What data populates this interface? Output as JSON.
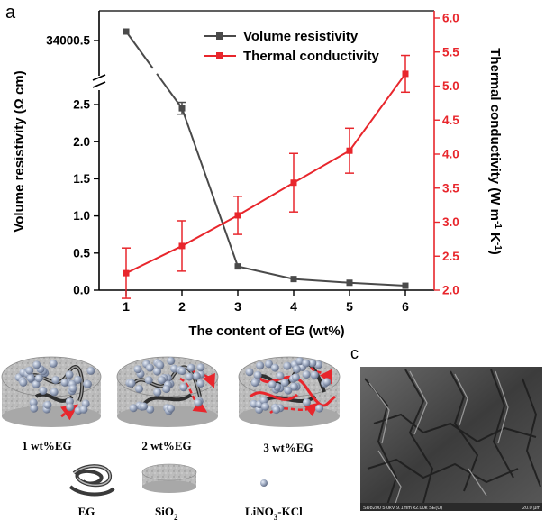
{
  "panel_a": {
    "label": "a"
  },
  "panel_c": {
    "label": "c",
    "sem_caption": "SU8200 5.0kV 9.1mm x2.00k SE(U)",
    "scale_bar": "20.0 μm"
  },
  "panel_b": {
    "samples": [
      "1 wt%EG",
      "2 wt%EG",
      "3 wt%EG"
    ],
    "legend": {
      "eg": "EG",
      "sio2": "SiO",
      "sio2_sub": "2",
      "salt": "LiNO",
      "salt_sub": "3",
      "salt_suffix": "-KCl"
    }
  },
  "colors": {
    "resistivity": "#4a4a4a",
    "conductivity": "#e8262c",
    "background": "#ffffff"
  },
  "chart_data": {
    "type": "line",
    "xlabel": "The content of EG (wt%)",
    "ylabel_left": "Volume resistivity (Ω cm)",
    "ylabel_right_main": "Thermal conductivity (W m",
    "ylabel_right_tail": " K",
    "ylabel_right_sup": "-1",
    "x": [
      1,
      2,
      3,
      4,
      5,
      6
    ],
    "x_ticks": [
      "1",
      "2",
      "3",
      "4",
      "5",
      "6"
    ],
    "y_left_ticks": [
      "0.0",
      "0.5",
      "1.0",
      "1.5",
      "2.0",
      "2.5"
    ],
    "y_left_tick_values": [
      0,
      0.5,
      1.0,
      1.5,
      2.0,
      2.5
    ],
    "y_left_break_tick": "34000.5",
    "y_left_ylim": [
      0,
      2.75
    ],
    "y_right_ticks": [
      "2.0",
      "2.5",
      "3.0",
      "3.5",
      "4.0",
      "4.5",
      "5.0",
      "5.5",
      "6.0"
    ],
    "y_right_tick_values": [
      2.0,
      2.5,
      3.0,
      3.5,
      4.0,
      4.5,
      5.0,
      5.5,
      6.0
    ],
    "y_right_ylim": [
      2.0,
      6.0
    ],
    "legend_position": "top-center",
    "series": [
      {
        "name": "Volume resistivity",
        "axis": "left",
        "marker": "square",
        "values": [
          34000.5,
          2.45,
          0.32,
          0.15,
          0.1,
          0.06
        ],
        "errors": [
          0,
          0.08,
          0,
          0,
          0,
          0
        ]
      },
      {
        "name": "Thermal conductivity",
        "axis": "right",
        "marker": "square",
        "values": [
          2.25,
          2.65,
          3.1,
          3.58,
          4.05,
          5.18
        ],
        "errors": [
          0.37,
          0.37,
          0.28,
          0.43,
          0.33,
          0.27
        ]
      }
    ]
  }
}
